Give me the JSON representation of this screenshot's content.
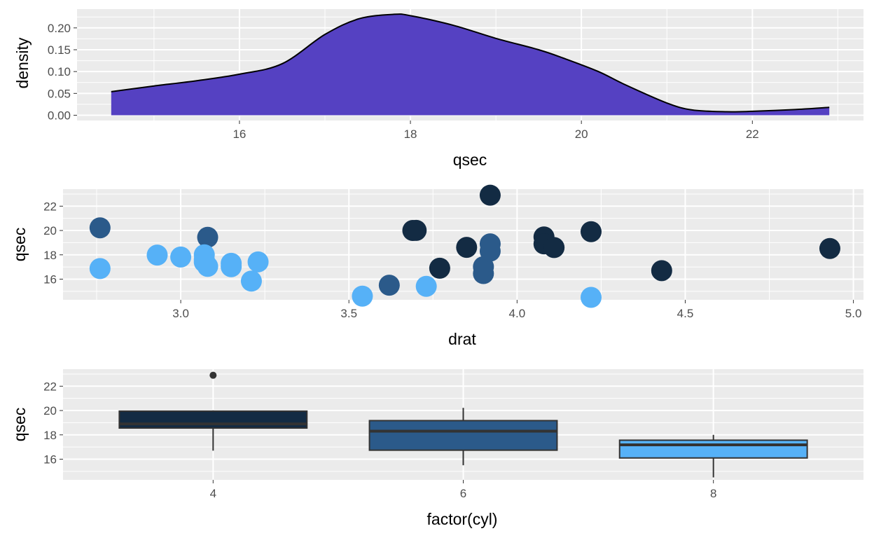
{
  "chart_data": [
    {
      "type": "area",
      "title": "",
      "xlabel": "qsec",
      "ylabel": "density",
      "xlim": [
        14.1,
        23.3
      ],
      "ylim": [
        -0.012,
        0.243
      ],
      "xticks": [
        16,
        18,
        20,
        22
      ],
      "yticks": [
        0.0,
        0.05,
        0.1,
        0.15,
        0.2
      ],
      "ytick_labels": [
        "0.00",
        "0.05",
        "0.10",
        "0.15",
        "0.20"
      ],
      "grid": true,
      "fill_color": "#5541C2",
      "line_color": "#000000",
      "x": [
        14.5,
        15.0,
        15.5,
        16.0,
        16.5,
        17.0,
        17.4,
        17.8,
        18.0,
        18.5,
        19.0,
        19.5,
        19.8,
        20.2,
        20.5,
        21.0,
        21.3,
        21.7,
        22.0,
        22.5,
        22.9
      ],
      "y": [
        0.054,
        0.067,
        0.079,
        0.094,
        0.118,
        0.185,
        0.221,
        0.231,
        0.228,
        0.206,
        0.176,
        0.15,
        0.13,
        0.1,
        0.071,
        0.028,
        0.012,
        0.008,
        0.009,
        0.013,
        0.018
      ]
    },
    {
      "type": "scatter",
      "title": "",
      "xlabel": "drat",
      "ylabel": "qsec",
      "xlim": [
        2.65,
        5.03
      ],
      "ylim": [
        14.3,
        23.4
      ],
      "xticks": [
        3.0,
        3.5,
        4.0,
        4.5,
        5.0
      ],
      "xtick_labels": [
        "3.0",
        "3.5",
        "4.0",
        "4.5",
        "5.0"
      ],
      "yticks": [
        16,
        18,
        20,
        22
      ],
      "grid": true,
      "colors": {
        "4": "#132B43",
        "6": "#2B5A8A",
        "8": "#56B1F7"
      },
      "points": [
        {
          "x": 3.9,
          "y": 16.46,
          "cyl": 6
        },
        {
          "x": 3.9,
          "y": 17.02,
          "cyl": 6
        },
        {
          "x": 3.85,
          "y": 18.61,
          "cyl": 4
        },
        {
          "x": 3.08,
          "y": 19.44,
          "cyl": 6
        },
        {
          "x": 3.15,
          "y": 17.02,
          "cyl": 8
        },
        {
          "x": 2.76,
          "y": 20.22,
          "cyl": 6
        },
        {
          "x": 3.21,
          "y": 15.84,
          "cyl": 8
        },
        {
          "x": 3.69,
          "y": 20.0,
          "cyl": 4
        },
        {
          "x": 3.92,
          "y": 22.9,
          "cyl": 4
        },
        {
          "x": 3.92,
          "y": 18.3,
          "cyl": 6
        },
        {
          "x": 3.92,
          "y": 18.9,
          "cyl": 6
        },
        {
          "x": 3.07,
          "y": 17.4,
          "cyl": 8
        },
        {
          "x": 3.07,
          "y": 17.6,
          "cyl": 8
        },
        {
          "x": 3.07,
          "y": 18.0,
          "cyl": 8
        },
        {
          "x": 2.93,
          "y": 17.98,
          "cyl": 8
        },
        {
          "x": 3.0,
          "y": 17.82,
          "cyl": 8
        },
        {
          "x": 3.23,
          "y": 17.42,
          "cyl": 8
        },
        {
          "x": 4.08,
          "y": 19.47,
          "cyl": 4
        },
        {
          "x": 4.93,
          "y": 18.52,
          "cyl": 4
        },
        {
          "x": 4.22,
          "y": 19.9,
          "cyl": 4
        },
        {
          "x": 3.7,
          "y": 20.01,
          "cyl": 4
        },
        {
          "x": 2.76,
          "y": 16.87,
          "cyl": 8
        },
        {
          "x": 3.15,
          "y": 17.3,
          "cyl": 8
        },
        {
          "x": 3.73,
          "y": 15.41,
          "cyl": 8
        },
        {
          "x": 3.08,
          "y": 17.05,
          "cyl": 8
        },
        {
          "x": 4.08,
          "y": 18.9,
          "cyl": 4
        },
        {
          "x": 4.43,
          "y": 16.7,
          "cyl": 4
        },
        {
          "x": 3.77,
          "y": 16.9,
          "cyl": 4
        },
        {
          "x": 4.22,
          "y": 14.5,
          "cyl": 8
        },
        {
          "x": 3.62,
          "y": 15.5,
          "cyl": 6
        },
        {
          "x": 3.54,
          "y": 14.6,
          "cyl": 8
        },
        {
          "x": 4.11,
          "y": 18.6,
          "cyl": 4
        }
      ]
    },
    {
      "type": "box",
      "title": "",
      "xlabel": "factor(cyl)",
      "ylabel": "qsec",
      "categories": [
        "4",
        "6",
        "8"
      ],
      "ylim": [
        14.3,
        23.4
      ],
      "yticks": [
        16,
        18,
        20,
        22
      ],
      "grid": true,
      "boxes": [
        {
          "category": "4",
          "whisker_low": 16.7,
          "q1": 18.56,
          "median": 18.9,
          "q3": 19.95,
          "whisker_high": 20.01,
          "outliers": [
            22.9
          ],
          "fill": "#132B43"
        },
        {
          "category": "6",
          "whisker_low": 15.5,
          "q1": 16.74,
          "median": 18.3,
          "q3": 19.17,
          "whisker_high": 20.22,
          "outliers": [],
          "fill": "#2B5A8A"
        },
        {
          "category": "8",
          "whisker_low": 14.5,
          "q1": 16.1,
          "median": 17.18,
          "q3": 17.56,
          "whisker_high": 18.0,
          "outliers": [],
          "fill": "#56B1F7"
        }
      ]
    }
  ]
}
